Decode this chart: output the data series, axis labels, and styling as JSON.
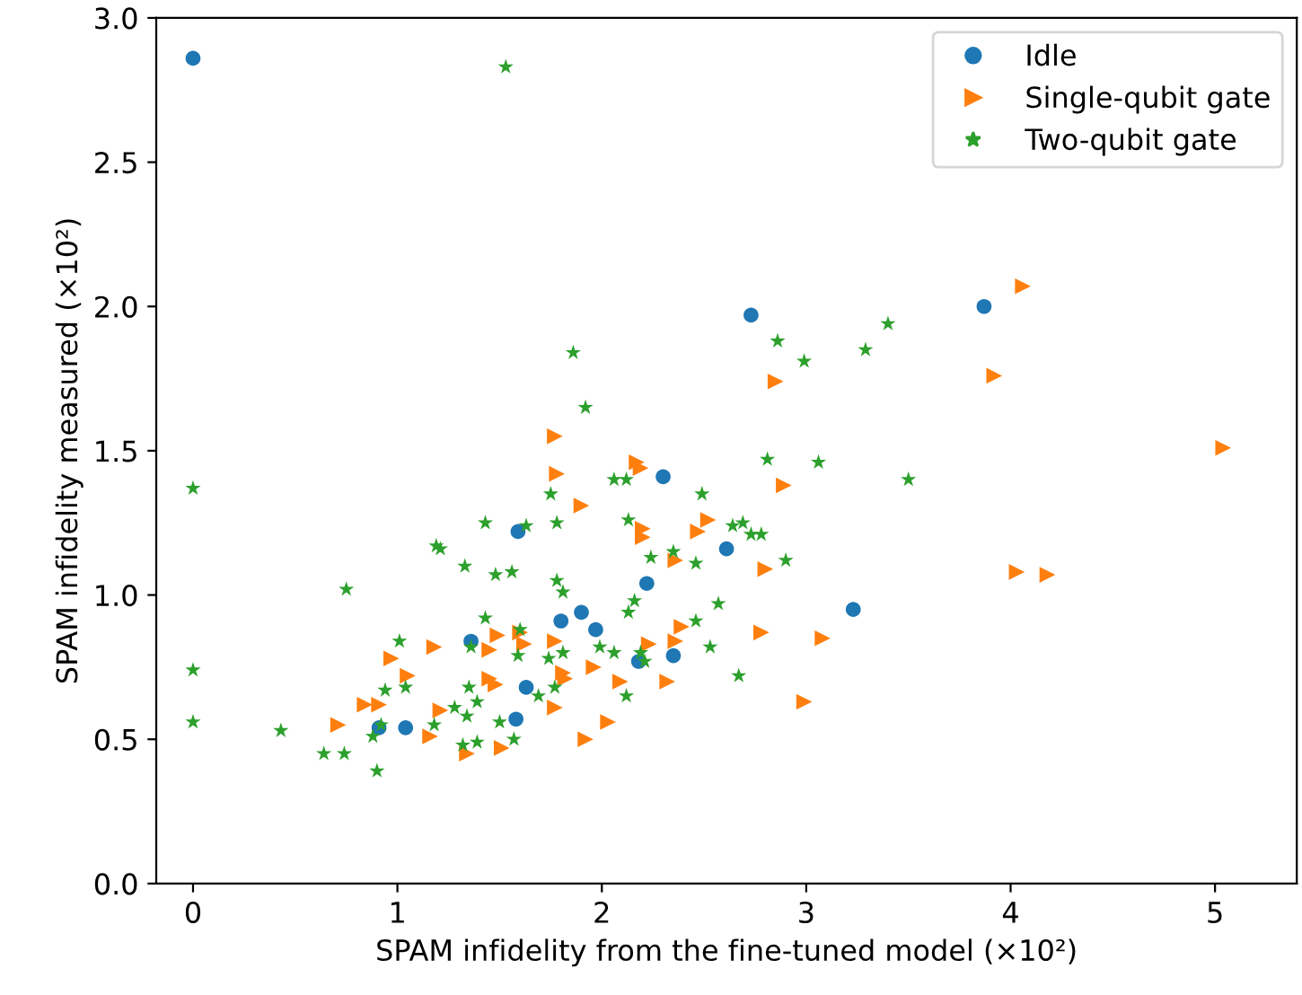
{
  "chart_data": {
    "type": "scatter",
    "xlabel": "SPAM infidelity from the fine-tuned model (×10²)",
    "ylabel": "SPAM infidelity measured (×10²)",
    "xlim": [
      -0.18,
      5.4
    ],
    "ylim": [
      0,
      3.0
    ],
    "xticks": [
      0,
      1,
      2,
      3,
      4,
      5
    ],
    "yticks": [
      {
        "value": 0,
        "label": "0.0"
      },
      {
        "value": 0.5,
        "label": "0.5"
      },
      {
        "value": 1,
        "label": "1.0"
      },
      {
        "value": 1.5,
        "label": "1.5"
      },
      {
        "value": 2,
        "label": "2.0"
      },
      {
        "value": 2.5,
        "label": "2.5"
      },
      {
        "value": 3,
        "label": "3.0"
      }
    ],
    "grid": false,
    "legend": "top right",
    "series": [
      {
        "name": "Idle",
        "color": "#1f77b4",
        "marker": "circle",
        "x": [
          0,
          0.91,
          1.04,
          1.36,
          2.3,
          1.59,
          2.61,
          2.22,
          1.8,
          1.9,
          1.97,
          2.18,
          2.35,
          1.63,
          1.58,
          2.73,
          3.87,
          3.23
        ],
        "values": [
          2.86,
          0.54,
          0.54,
          0.84,
          1.41,
          1.22,
          1.16,
          1.04,
          0.91,
          0.94,
          0.88,
          0.77,
          0.79,
          0.68,
          0.57,
          1.97,
          2.0,
          0.95
        ]
      },
      {
        "name": "Single-qubit gate",
        "color": "#ff7f0e",
        "marker": "triangle",
        "x": [
          1.18,
          0.97,
          1.05,
          0.84,
          0.91,
          0.71,
          1.21,
          1.16,
          1.34,
          1.49,
          1.45,
          1.45,
          1.48,
          1.51,
          1.77,
          1.78,
          2.17,
          2.19,
          1.9,
          2.89,
          2.2,
          2.2,
          2.47,
          2.52,
          2.36,
          2.8,
          1.6,
          1.62,
          1.77,
          2.23,
          2.36,
          2.39,
          2.78,
          3.08,
          1.81,
          1.82,
          1.96,
          2.09,
          2.32,
          1.77,
          2.03,
          1.92,
          2.99,
          4.06,
          2.85,
          3.92,
          5.04,
          4.03,
          4.18
        ],
        "values": [
          0.82,
          0.78,
          0.72,
          0.62,
          0.62,
          0.55,
          0.6,
          0.51,
          0.45,
          0.86,
          0.81,
          0.71,
          0.69,
          0.47,
          1.55,
          1.42,
          1.46,
          1.44,
          1.31,
          1.38,
          1.23,
          1.2,
          1.22,
          1.26,
          1.12,
          1.09,
          0.87,
          0.83,
          0.84,
          0.83,
          0.84,
          0.89,
          0.87,
          0.85,
          0.73,
          0.71,
          0.75,
          0.7,
          0.7,
          0.61,
          0.56,
          0.5,
          0.63,
          2.07,
          1.74,
          1.76,
          1.51,
          1.08,
          1.07
        ]
      },
      {
        "name": "Two-qubit gate",
        "color": "#2ca02c",
        "marker": "star",
        "x": [
          0,
          0,
          0,
          0.43,
          0.75,
          1.43,
          1.19,
          1.21,
          1.33,
          1.48,
          1.43,
          1.01,
          1.36,
          0.94,
          1.04,
          1.35,
          1.39,
          1.28,
          1.34,
          1.18,
          0.88,
          0.64,
          0.74,
          0.9,
          1.39,
          1.5,
          1.32,
          0.92,
          2.81,
          3.06,
          2.06,
          2.12,
          2.49,
          1.75,
          1.78,
          2.13,
          1.63,
          2.64,
          2.69,
          2.73,
          2.78,
          2.24,
          2.35,
          2.46,
          2.9,
          1.56,
          1.78,
          1.81,
          2.16,
          2.13,
          2.57,
          2.46,
          1.6,
          1.59,
          1.74,
          1.81,
          1.99,
          2.06,
          2.19,
          2.21,
          2.53,
          2.67,
          1.69,
          1.77,
          2.12,
          1.57,
          2.86,
          2.99,
          3.4,
          3.29,
          3.5,
          1.53,
          1.86,
          1.92
        ],
        "values": [
          1.37,
          0.74,
          0.56,
          0.53,
          1.02,
          1.25,
          1.17,
          1.16,
          1.1,
          1.07,
          0.92,
          0.84,
          0.82,
          0.67,
          0.68,
          0.68,
          0.63,
          0.61,
          0.58,
          0.55,
          0.51,
          0.45,
          0.45,
          0.39,
          0.49,
          0.56,
          0.48,
          0.55,
          1.47,
          1.46,
          1.4,
          1.4,
          1.35,
          1.35,
          1.25,
          1.26,
          1.24,
          1.24,
          1.25,
          1.21,
          1.21,
          1.13,
          1.15,
          1.11,
          1.12,
          1.08,
          1.05,
          1.01,
          0.98,
          0.94,
          0.97,
          0.91,
          0.88,
          0.79,
          0.78,
          0.8,
          0.82,
          0.8,
          0.8,
          0.77,
          0.82,
          0.72,
          0.65,
          0.68,
          0.65,
          0.5,
          1.88,
          1.81,
          1.94,
          1.85,
          1.4,
          2.83,
          1.84,
          1.65
        ]
      }
    ]
  }
}
